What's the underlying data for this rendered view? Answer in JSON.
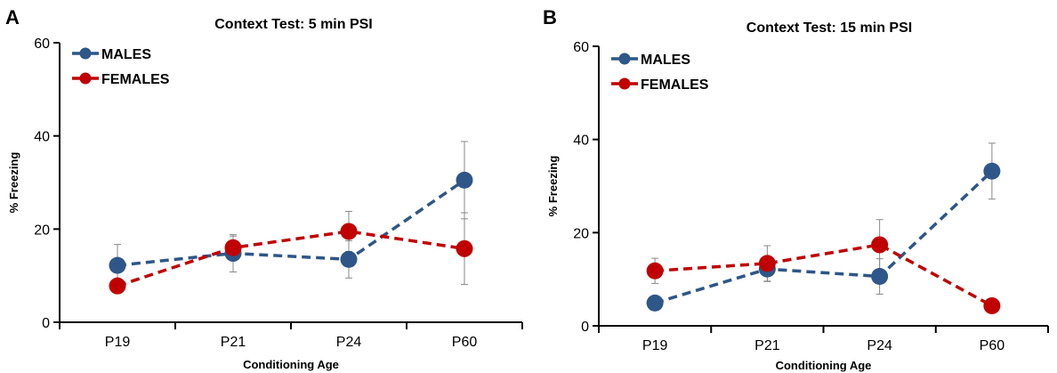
{
  "colors": {
    "males": "#2E5688",
    "females": "#C00000",
    "error_bar": "#888888"
  },
  "chart_data": [
    {
      "panel": "A",
      "type": "line",
      "title": "Context Test: 5 min PSI",
      "xlabel": "Conditioning Age",
      "ylabel": "% Freezing",
      "categories": [
        "P19",
        "P21",
        "P24",
        "P60"
      ],
      "ylim": [
        0,
        60
      ],
      "yticks": [
        0,
        20,
        40,
        60
      ],
      "legend_position": "top-left",
      "grid": false,
      "series": [
        {
          "name": "MALES",
          "color": "#2E5688",
          "values": [
            12.2,
            14.8,
            13.5,
            30.5
          ],
          "errors": [
            4.5,
            4.0,
            4.0,
            8.3
          ]
        },
        {
          "name": "FEMALES",
          "color": "#C00000",
          "values": [
            7.8,
            16.0,
            19.5,
            15.8
          ],
          "errors": [
            0,
            2.5,
            4.3,
            7.7
          ]
        }
      ]
    },
    {
      "panel": "B",
      "type": "line",
      "title": "Context Test: 15 min PSI",
      "xlabel": "Conditioning Age",
      "ylabel": "% Freezing",
      "categories": [
        "P19",
        "P21",
        "P24",
        "P60"
      ],
      "ylim": [
        0,
        60
      ],
      "yticks": [
        0,
        20,
        40,
        60
      ],
      "legend_position": "top-left",
      "grid": false,
      "series": [
        {
          "name": "MALES",
          "color": "#2E5688",
          "values": [
            4.9,
            12.2,
            10.6,
            33.2
          ],
          "errors": [
            0,
            2.7,
            3.8,
            6.0
          ]
        },
        {
          "name": "FEMALES",
          "color": "#C00000",
          "values": [
            11.8,
            13.4,
            17.4,
            4.3
          ],
          "errors": [
            2.7,
            3.8,
            5.4,
            0
          ]
        }
      ]
    }
  ]
}
